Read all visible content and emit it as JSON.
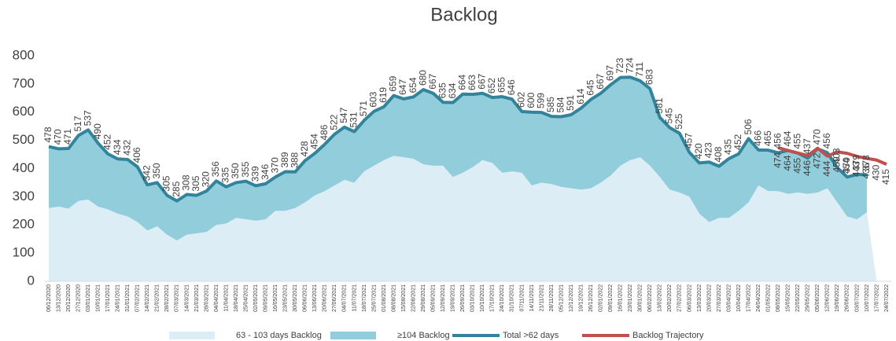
{
  "chart_data": {
    "type": "area",
    "title": "Backlog",
    "categories": [
      "06/12/2020",
      "13/12/2020",
      "20/12/2020",
      "27/12/2020",
      "03/01/2021",
      "10/01/2021",
      "17/01/2021",
      "24/01/2021",
      "31/01/2021",
      "07/02/2021",
      "14/02/2021",
      "21/02/2021",
      "28/02/2021",
      "07/03/2021",
      "14/03/2021",
      "21/03/2021",
      "28/03/2021",
      "04/04/2021",
      "11/04/2021",
      "18/04/2021",
      "25/04/2021",
      "02/05/2021",
      "09/05/2021",
      "16/05/2021",
      "23/05/2021",
      "30/05/2021",
      "06/06/2021",
      "13/06/2021",
      "20/06/2021",
      "27/06/2021",
      "04/07/2021",
      "11/07/2021",
      "18/07/2021",
      "25/07/2021",
      "01/08/2021",
      "08/08/2021",
      "15/08/2021",
      "22/08/2021",
      "29/08/2021",
      "05/09/2021",
      "12/09/2021",
      "19/09/2021",
      "26/09/2021",
      "03/10/2021",
      "10/10/2021",
      "17/10/2021",
      "24/10/2021",
      "31/10/2021",
      "07/11/2021",
      "14/11/2021",
      "21/11/2021",
      "28/11/2021",
      "05/12/2021",
      "12/12/2021",
      "19/12/2021",
      "26/12/2021",
      "02/01/2022",
      "09/01/2022",
      "16/01/2022",
      "23/01/2022",
      "30/01/2022",
      "06/02/2022",
      "13/02/2022",
      "20/02/2022",
      "27/02/2022",
      "06/03/2022",
      "13/03/2022",
      "20/03/2022",
      "27/03/2022",
      "03/04/2022",
      "10/04/2022",
      "17/04/2022",
      "24/04/2022",
      "01/05/2022",
      "08/05/2022",
      "15/05/2022",
      "22/05/2022",
      "29/05/2022",
      "05/06/2022",
      "12/06/2022",
      "19/06/2022",
      "26/06/2022",
      "03/07/2022",
      "10/07/2022",
      "17/07/2022",
      "24/07/2022"
    ],
    "series": [
      {
        "name": "63 - 103 days Backlog",
        "kind": "area",
        "color": "#dcedf5",
        "values": [
          260,
          265,
          258,
          285,
          290,
          265,
          255,
          240,
          230,
          210,
          180,
          195,
          165,
          145,
          165,
          170,
          175,
          200,
          205,
          225,
          220,
          215,
          220,
          250,
          250,
          260,
          280,
          305,
          320,
          340,
          360,
          350,
          390,
          410,
          430,
          445,
          440,
          435,
          415,
          410,
          410,
          370,
          385,
          405,
          430,
          420,
          385,
          390,
          385,
          340,
          350,
          345,
          335,
          330,
          325,
          330,
          350,
          375,
          410,
          430,
          440,
          410,
          370,
          325,
          315,
          300,
          240,
          210,
          225,
          225,
          250,
          280,
          340,
          320,
          320,
          310,
          315,
          310,
          315,
          330,
          280,
          230,
          220,
          245,
          0,
          null
        ]
      },
      {
        "name": "≥104 Backlog",
        "kind": "area",
        "color": "#92cddc",
        "values": [
          218,
          205,
          213,
          232,
          247,
          225,
          197,
          194,
          202,
          196,
          162,
          155,
          140,
          140,
          143,
          135,
          145,
          156,
          130,
          125,
          135,
          124,
          126,
          120,
          139,
          128,
          148,
          149,
          166,
          182,
          187,
          181,
          181,
          193,
          189,
          214,
          207,
          219,
          265,
          257,
          225,
          264,
          279,
          258,
          237,
          232,
          270,
          256,
          217,
          260,
          249,
          240,
          249,
          261,
          289,
          315,
          317,
          322,
          313,
          294,
          271,
          273,
          211,
          220,
          210,
          157,
          180,
          213,
          183,
          210,
          202,
          226,
          126,
          145,
          136,
          154,
          140,
          127,
          155,
          126,
          123,
          140,
          159,
          133,
          null,
          null
        ]
      },
      {
        "name": "Total >62 days",
        "kind": "line",
        "color": "#31849b",
        "label_side": "above",
        "values": [
          478,
          470,
          471,
          517,
          537,
          490,
          452,
          434,
          432,
          406,
          342,
          350,
          305,
          285,
          308,
          305,
          320,
          356,
          335,
          350,
          355,
          339,
          346,
          370,
          389,
          388,
          428,
          454,
          486,
          522,
          547,
          531,
          571,
          603,
          619,
          659,
          647,
          654,
          680,
          667,
          635,
          634,
          664,
          663,
          667,
          652,
          655,
          646,
          602,
          600,
          599,
          585,
          584,
          591,
          614,
          645,
          667,
          697,
          723,
          724,
          711,
          683,
          581,
          545,
          525,
          457,
          420,
          423,
          408,
          435,
          452,
          506,
          466,
          465,
          456,
          464,
          455,
          437,
          470,
          456,
          403,
          370,
          379,
          378,
          null,
          null
        ]
      },
      {
        "name": "Backlog Trajectory",
        "kind": "line",
        "color": "#c0504d",
        "label_side": "below",
        "values": [
          null,
          null,
          null,
          null,
          null,
          null,
          null,
          null,
          null,
          null,
          null,
          null,
          null,
          null,
          null,
          null,
          null,
          null,
          null,
          null,
          null,
          null,
          null,
          null,
          null,
          null,
          null,
          null,
          null,
          null,
          null,
          null,
          null,
          null,
          null,
          null,
          null,
          null,
          null,
          null,
          null,
          null,
          null,
          null,
          null,
          null,
          null,
          null,
          null,
          null,
          null,
          null,
          null,
          null,
          null,
          null,
          null,
          null,
          null,
          null,
          null,
          null,
          null,
          null,
          null,
          null,
          null,
          null,
          null,
          null,
          null,
          null,
          null,
          null,
          474,
          464,
          455,
          446,
          472,
          444,
          459,
          454,
          443,
          436,
          430,
          415
        ]
      }
    ],
    "ylim": [
      0,
      800
    ],
    "yticks": [
      0,
      100,
      200,
      300,
      400,
      500,
      600,
      700,
      800
    ]
  }
}
